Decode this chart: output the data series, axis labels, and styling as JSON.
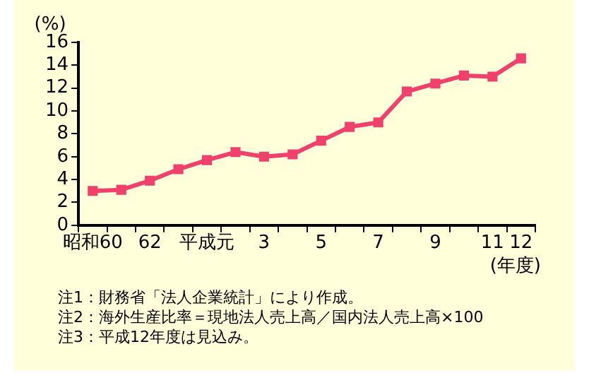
{
  "chart_data": {
    "type": "line",
    "ylabel": "(%)",
    "xlabel": "(年度)",
    "categories": [
      "昭和60",
      null,
      "62",
      null,
      "平成元",
      null,
      "3",
      null,
      "5",
      null,
      "7",
      null,
      "9",
      null,
      "11",
      "12"
    ],
    "series": [
      {
        "color": "#f0406c",
        "values": [
          3.0,
          3.1,
          3.9,
          4.9,
          5.7,
          6.4,
          6.0,
          6.2,
          7.4,
          8.6,
          9.0,
          11.7,
          12.4,
          13.1,
          13.0,
          14.6
        ]
      }
    ],
    "ylim": [
      0,
      16
    ],
    "yticks": [
      0,
      2,
      4,
      6,
      8,
      10,
      12,
      14,
      16
    ],
    "grid": false,
    "legend": false,
    "marker": "square",
    "line_style": "solid",
    "annotations": [
      "注1：財務省「法人企業統計」により作成。",
      "注2：海外生産比率＝現地法人売上高／国内法人売上高×100",
      "注3：平成12年度は見込み。"
    ]
  }
}
